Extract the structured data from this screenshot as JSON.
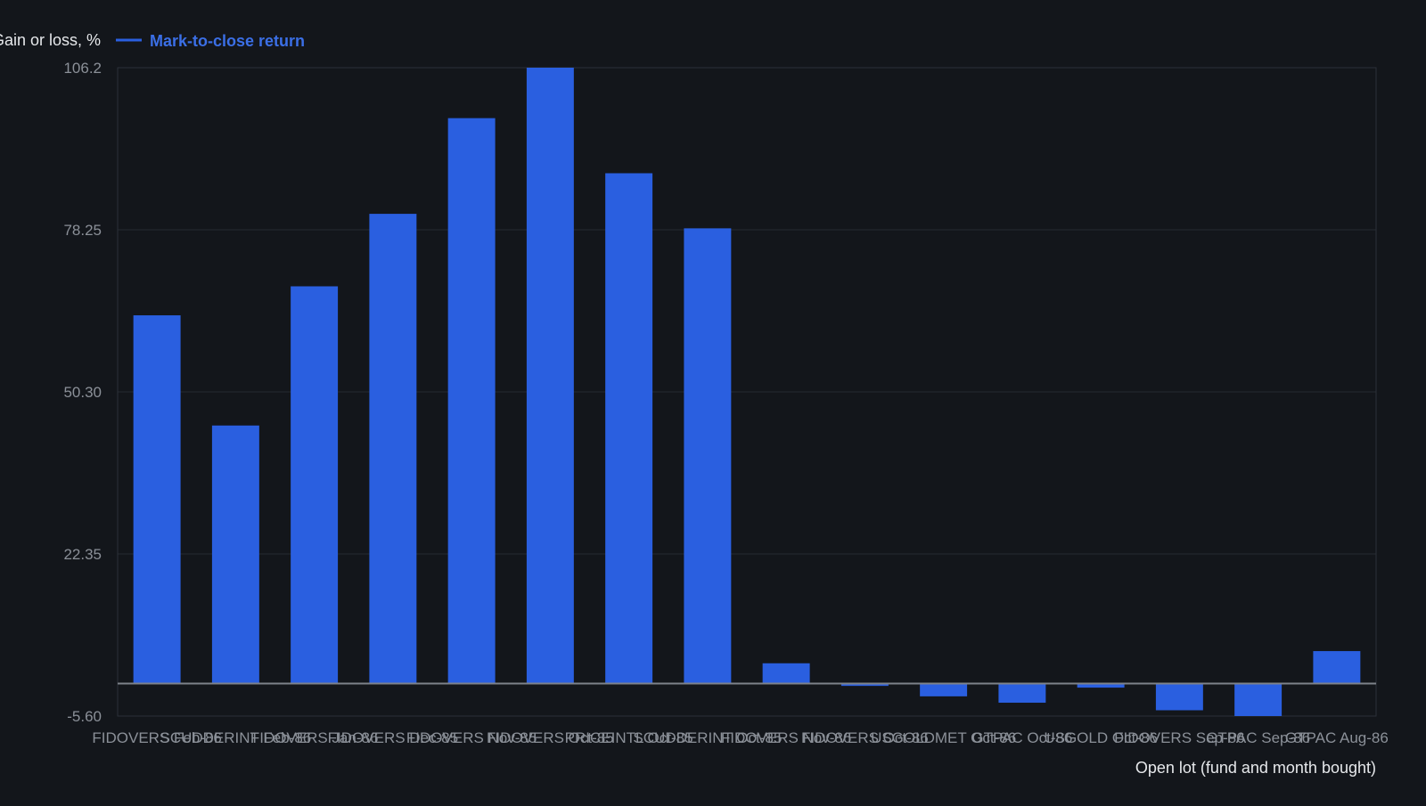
{
  "chart_data": {
    "type": "bar",
    "ylabel": "Gain or loss, %",
    "xlabel": "Open lot (fund and month bought)",
    "legend": {
      "placement": "top-left",
      "entries": [
        "Mark-to-close return"
      ]
    },
    "categories": [
      "FIDOVERS Feb-86",
      "SCUDDERINT Feb-86",
      "FIDOVERS Jan-86",
      "FIDOVERS Dec-85",
      "FIDOVERS Nov-85",
      "FIDOVERS Oct-85",
      "PRICEINTL Oct-85",
      "SCUDDERINT Oct-85",
      "FIDOVERS Nov-86",
      "FIDOVERS Oct-86",
      "USGOLDMET Oct-86",
      "GTPAC Oct-86",
      "USGOLD Oct-86",
      "FIDOVERS Sep-86",
      "GTPAC Sep-86",
      "GTPAC Aug-86"
    ],
    "series": [
      {
        "name": "Mark-to-close return",
        "color": "#2a5fe0",
        "values": [
          63.5,
          44.5,
          68.5,
          81.0,
          97.5,
          106.2,
          88.0,
          78.5,
          3.5,
          -0.4,
          -2.2,
          -3.3,
          -0.7,
          -4.6,
          -5.6,
          5.6
        ]
      }
    ],
    "ylim": [
      -5.6,
      106.2
    ],
    "yticks": [
      -5.6,
      22.35,
      50.3,
      78.25,
      106.2
    ],
    "ytick_labels": [
      "-5.60",
      "22.35",
      "50.30",
      "78.25",
      "106.2"
    ],
    "grid": true
  }
}
